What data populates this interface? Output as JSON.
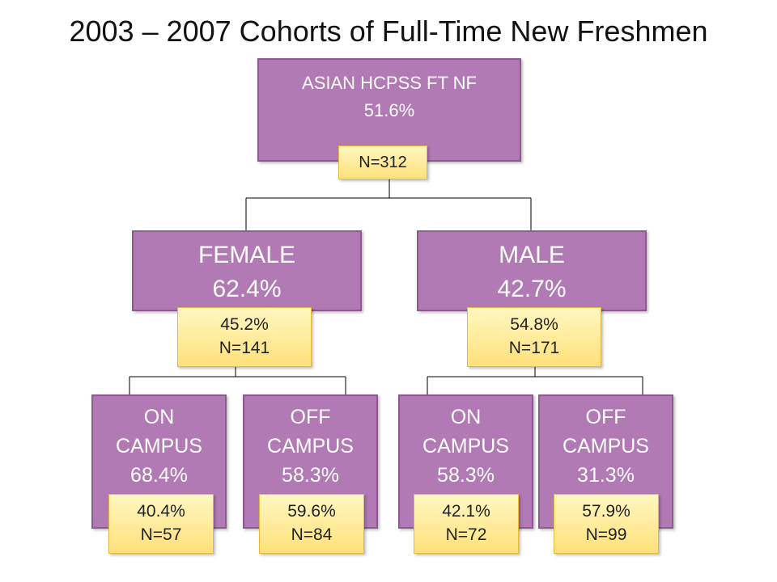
{
  "title": "2003 – 2007 Cohorts of Full-Time New Freshmen",
  "colors": {
    "node_fill": "#b27ab4",
    "node_border": "#8d5a90",
    "tag_fill": "#ffe17a",
    "tag_border": "#e6b83c",
    "connector": "#000000"
  },
  "root": {
    "line1": "ASIAN HCPSS FT NF",
    "line2": "51.6%",
    "tag": "N=312"
  },
  "female": {
    "line1": "FEMALE",
    "line2": "62.4%",
    "tag_line1": "45.2%",
    "tag_line2": "N=141"
  },
  "male": {
    "line1": "MALE",
    "line2": "42.7%",
    "tag_line1": "54.8%",
    "tag_line2": "N=171"
  },
  "leaves": [
    {
      "line1": "ON",
      "line2": "CAMPUS",
      "line3": "68.4%",
      "tag_line1": "40.4%",
      "tag_line2": "N=57"
    },
    {
      "line1": "OFF",
      "line2": "CAMPUS",
      "line3": "58.3%",
      "tag_line1": "59.6%",
      "tag_line2": "N=84"
    },
    {
      "line1": "ON",
      "line2": "CAMPUS",
      "line3": "58.3%",
      "tag_line1": "42.1%",
      "tag_line2": "N=72"
    },
    {
      "line1": "OFF",
      "line2": "CAMPUS",
      "line3": "31.3%",
      "tag_line1": "57.9%",
      "tag_line2": "N=99"
    }
  ]
}
